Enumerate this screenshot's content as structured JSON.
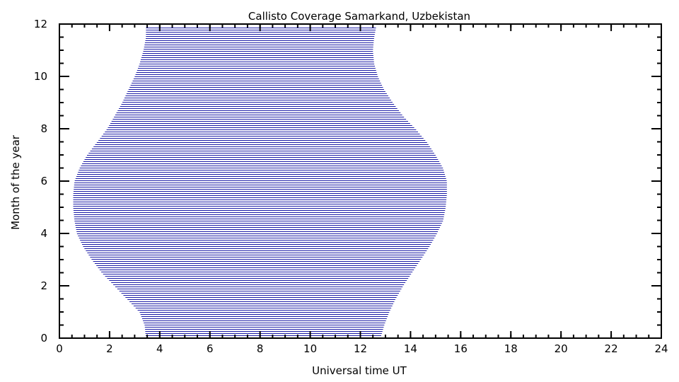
{
  "chart_data": {
    "type": "area",
    "title": "Callisto Coverage Samarkand, Uzbekistan",
    "xlabel": "Universal time UT",
    "ylabel": "Month of the year",
    "xlim": [
      0,
      24
    ],
    "ylim": [
      0,
      12
    ],
    "x_ticks": [
      0,
      2,
      4,
      6,
      8,
      10,
      12,
      14,
      16,
      18,
      20,
      22,
      24
    ],
    "y_ticks": [
      0,
      2,
      4,
      6,
      8,
      10,
      12
    ],
    "x_minor_step": 0.5,
    "y_minor_step": 0.5,
    "fill_style": "horizontal-lines",
    "line_color": "#1a1aa6",
    "axis_color": "#000000",
    "coverage": {
      "month": [
        0,
        0.5,
        1,
        1.5,
        2,
        2.5,
        3,
        3.5,
        4,
        4.5,
        5,
        5.5,
        6,
        6.5,
        7,
        7.5,
        8,
        8.5,
        9,
        9.5,
        10,
        10.5,
        11,
        11.5,
        12
      ],
      "start_ut": [
        3.45,
        3.4,
        3.2,
        2.7,
        2.2,
        1.7,
        1.3,
        0.95,
        0.7,
        0.6,
        0.55,
        0.55,
        0.6,
        0.8,
        1.1,
        1.5,
        1.9,
        2.2,
        2.5,
        2.75,
        3.0,
        3.2,
        3.35,
        3.45,
        3.45
      ],
      "end_ut": [
        12.8,
        12.95,
        13.15,
        13.4,
        13.7,
        14.05,
        14.4,
        14.75,
        15.05,
        15.3,
        15.4,
        15.45,
        15.45,
        15.3,
        15.0,
        14.65,
        14.2,
        13.7,
        13.3,
        12.95,
        12.7,
        12.55,
        12.5,
        12.55,
        12.65
      ]
    }
  }
}
